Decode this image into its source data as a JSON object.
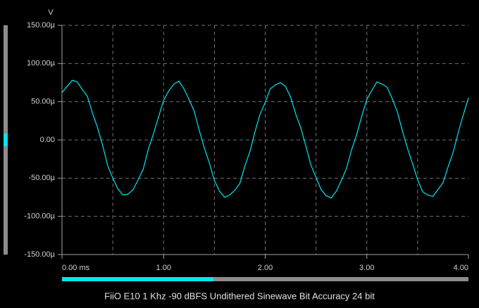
{
  "chart_data": {
    "type": "line",
    "title": "FiiO E10 1 Khz -90 dBFS Undithered Sinewave Bit Accuracy 24 bit",
    "y_unit": "V",
    "x": [
      0,
      0.05,
      0.1,
      0.15,
      0.2,
      0.25,
      0.3,
      0.35,
      0.4,
      0.45,
      0.5,
      0.55,
      0.6,
      0.65,
      0.7,
      0.75,
      0.8,
      0.85,
      0.9,
      0.95,
      1,
      1.05,
      1.1,
      1.15,
      1.2,
      1.25,
      1.3,
      1.35,
      1.4,
      1.45,
      1.5,
      1.55,
      1.6,
      1.65,
      1.7,
      1.75,
      1.8,
      1.85,
      1.9,
      1.95,
      2,
      2.05,
      2.1,
      2.15,
      2.2,
      2.25,
      2.3,
      2.35,
      2.4,
      2.45,
      2.5,
      2.55,
      2.6,
      2.65,
      2.7,
      2.75,
      2.8,
      2.85,
      2.9,
      2.95,
      3,
      3.05,
      3.1,
      3.15,
      3.2,
      3.25,
      3.3,
      3.35,
      3.4,
      3.45,
      3.5,
      3.55,
      3.6,
      3.65,
      3.7,
      3.75,
      3.8,
      3.85,
      3.9,
      3.95,
      4
    ],
    "series": [
      {
        "color": "#00e5ee",
        "values": [
          62,
          70,
          78,
          76,
          66,
          57,
          35,
          16,
          -7,
          -34,
          -50,
          -64,
          -72,
          -71,
          -65,
          -52,
          -38,
          -12,
          8,
          30,
          52,
          64,
          73,
          77,
          67,
          53,
          38,
          13,
          -10,
          -30,
          -53,
          -67,
          -75,
          -72,
          -66,
          -57,
          -34,
          -15,
          11,
          34,
          49,
          67,
          72,
          75,
          70,
          56,
          34,
          16,
          -8,
          -33,
          -49,
          -65,
          -73,
          -76,
          -67,
          -53,
          -37,
          -13,
          7,
          31,
          53,
          65,
          76,
          73,
          69,
          54,
          37,
          12,
          -11,
          -31,
          -52,
          -68,
          -72,
          -74,
          -65,
          -56,
          -35,
          -16,
          10,
          33,
          55
        ]
      }
    ],
    "xlim": [
      0,
      4
    ],
    "xticks": [
      {
        "value": 0,
        "label": "0.00 ms"
      },
      {
        "value": 1,
        "label": "1.00"
      },
      {
        "value": 2,
        "label": "2.00"
      },
      {
        "value": 3,
        "label": "3.00"
      },
      {
        "value": 4,
        "label": "4.00"
      }
    ],
    "xgrid": [
      0.5,
      1,
      1.5,
      2,
      2.5,
      3,
      3.5
    ],
    "ylim": [
      -150,
      150
    ],
    "yticks": [
      {
        "value": -150,
        "label": "-150.00µ"
      },
      {
        "value": -100,
        "label": "-100.00µ"
      },
      {
        "value": -50,
        "label": "-50.00µ"
      },
      {
        "value": 0,
        "label": "0.00"
      },
      {
        "value": 50,
        "label": "50.00µ"
      },
      {
        "value": 100,
        "label": "100.00µ"
      },
      {
        "value": 150,
        "label": "150.00µ"
      }
    ],
    "grid": true
  }
}
